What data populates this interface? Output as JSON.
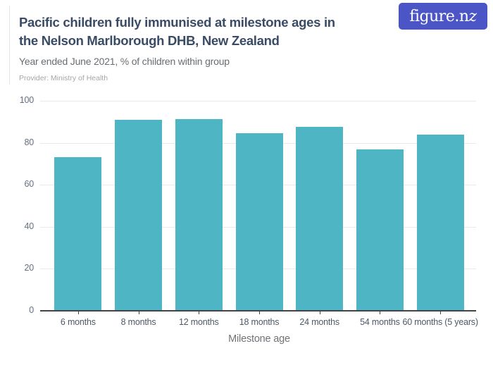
{
  "header": {
    "title_line1": "Pacific children fully immunised at milestone ages in",
    "title_line2": "the Nelson Marlborough DHB, New Zealand",
    "subtitle": "Year ended June 2021, % of children within group",
    "provider": "Provider: Ministry of Health"
  },
  "logo": {
    "text_main": "figure.n",
    "text_swash": "z",
    "bg_color": "#4c55c5",
    "text_color": "#ffffff"
  },
  "chart_data": {
    "type": "bar",
    "title": "Pacific children fully immunised at milestone ages in the Nelson Marlborough DHB, New Zealand",
    "subtitle": "Year ended June 2021, % of children within group",
    "categories": [
      "6 months",
      "8 months",
      "12 months",
      "18 months",
      "24 months",
      "54 months",
      "60 months (5 years)"
    ],
    "values": [
      73,
      91,
      91.4,
      84.6,
      87.7,
      76.7,
      83.7
    ],
    "xlabel": "Milestone age",
    "ylabel": "% of children within group",
    "ylim": [
      0,
      100
    ],
    "yticks": [
      0,
      20,
      40,
      60,
      80,
      100
    ],
    "grid": true,
    "legend": false,
    "bar_color": "#4eb5c5",
    "gridline_color": "#e8e9eb",
    "axis_color": "#3f4449"
  }
}
